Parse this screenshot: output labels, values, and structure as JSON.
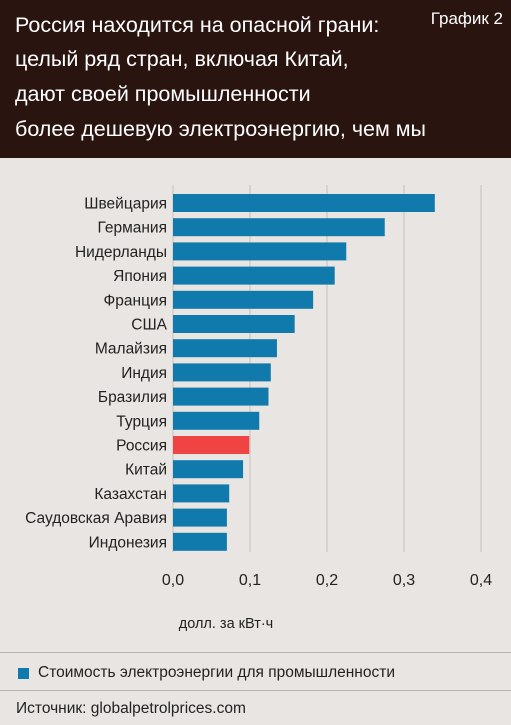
{
  "header": {
    "title_lines": [
      "Россия находится на опасной грани:",
      "целый ряд стран, включая Китай,",
      "дают своей промышленности",
      "более дешевую электроэнергию, чем мы"
    ],
    "chart_tag": "График 2"
  },
  "colors": {
    "header_bg": "#2a1410",
    "page_bg": "#e9e5e2",
    "bar": "#0f7aab",
    "highlight_bar": "#ef4344",
    "grid": "#c4bebb"
  },
  "chart_data": {
    "type": "bar",
    "orientation": "horizontal",
    "categories": [
      "Швейцария",
      "Германия",
      "Нидерланды",
      "Япония",
      "Франция",
      "США",
      "Малайзия",
      "Индия",
      "Бразилия",
      "Турция",
      "Россия",
      "Китай",
      "Казахстан",
      "Саудовская Аравия",
      "Индонезия"
    ],
    "series": [
      {
        "name": "Стоимость электроэнергии для промышленности",
        "values": [
          0.34,
          0.275,
          0.225,
          0.21,
          0.182,
          0.158,
          0.135,
          0.127,
          0.124,
          0.112,
          0.099,
          0.091,
          0.073,
          0.07,
          0.07
        ]
      }
    ],
    "highlight_category": "Россия",
    "xlim": [
      0,
      0.4
    ],
    "xticks": [
      "0,0",
      "0,1",
      "0,2",
      "0,3",
      "0,4"
    ],
    "xlabel": "долл. за кВт·ч",
    "grid": "vertical",
    "legend_position": "bottom"
  },
  "legend": {
    "label": "Стоимость электроэнергии для промышленности"
  },
  "source": "Источник: globalpetrolprices.com"
}
